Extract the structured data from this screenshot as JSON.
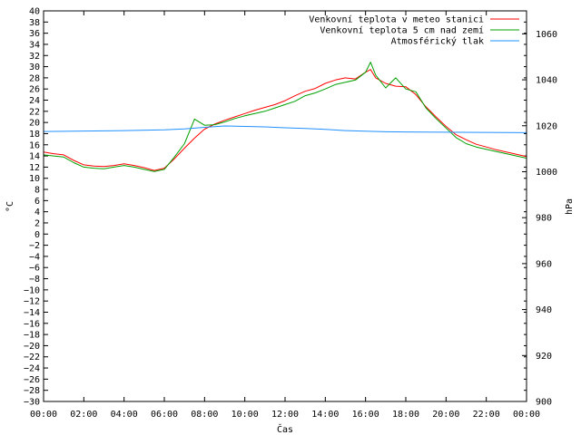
{
  "chart_data": {
    "type": "line",
    "xlabel": "Čas",
    "ylabel_left": "°C",
    "ylabel_right": "hPa",
    "x_ticks": [
      "00:00",
      "02:00",
      "04:00",
      "06:00",
      "08:00",
      "10:00",
      "12:00",
      "14:00",
      "16:00",
      "18:00",
      "20:00",
      "22:00",
      "00:00"
    ],
    "x_range_hours": [
      0,
      24
    ],
    "ylim_left": [
      -30,
      40
    ],
    "ytick_step_left": 2,
    "ylim_right": [
      900,
      1070
    ],
    "ytick_step_right": 20,
    "grid": false,
    "legend_position": "top-right",
    "series": [
      {
        "name": "Venkovní teplota v meteo stanici",
        "axis": "left",
        "color": "#ff0000",
        "x": [
          0,
          0.5,
          1,
          1.5,
          2,
          2.5,
          3,
          3.5,
          4,
          4.5,
          5,
          5.5,
          6,
          6.5,
          7,
          7.5,
          8,
          8.5,
          9,
          9.5,
          10,
          10.5,
          11,
          11.5,
          12,
          12.5,
          13,
          13.5,
          14,
          14.5,
          15,
          15.5,
          16,
          16.25,
          16.5,
          17,
          17.5,
          18,
          18.5,
          19,
          19.5,
          20,
          20.5,
          21,
          21.5,
          22,
          22.5,
          23,
          23.5,
          24
        ],
        "y": [
          14.7,
          14.4,
          14.2,
          13.2,
          12.4,
          12.2,
          12.1,
          12.3,
          12.6,
          12.3,
          11.9,
          11.4,
          11.8,
          13.5,
          15.4,
          17.2,
          18.8,
          19.7,
          20.4,
          21.0,
          21.6,
          22.2,
          22.7,
          23.2,
          23.9,
          24.8,
          25.6,
          26.1,
          27.0,
          27.6,
          28.0,
          27.8,
          29.0,
          29.5,
          28.0,
          27.0,
          26.5,
          26.4,
          25.0,
          22.8,
          21.0,
          19.3,
          17.8,
          16.9,
          16.1,
          15.6,
          15.1,
          14.7,
          14.3,
          13.9
        ]
      },
      {
        "name": "Venkovní teplota 5 cm nad zemí",
        "axis": "left",
        "color": "#00a000",
        "x": [
          0,
          0.5,
          1,
          1.5,
          2,
          2.5,
          3,
          3.5,
          4,
          4.5,
          5,
          5.5,
          6,
          6.5,
          7,
          7.5,
          8,
          8.5,
          9,
          9.5,
          10,
          10.5,
          11,
          11.5,
          12,
          12.5,
          13,
          13.5,
          14,
          14.5,
          15,
          15.5,
          16,
          16.25,
          16.5,
          17,
          17.5,
          18,
          18.5,
          19,
          19.5,
          20,
          20.5,
          21,
          21.5,
          22,
          22.5,
          23,
          23.5,
          24
        ],
        "y": [
          14.2,
          14.0,
          13.8,
          12.8,
          12.0,
          11.8,
          11.7,
          12.0,
          12.3,
          12.0,
          11.6,
          11.2,
          11.6,
          13.8,
          16.2,
          20.6,
          19.5,
          19.6,
          20.1,
          20.7,
          21.2,
          21.6,
          22.0,
          22.6,
          23.2,
          23.8,
          24.8,
          25.3,
          26.0,
          26.8,
          27.2,
          27.6,
          29.0,
          30.8,
          28.5,
          26.2,
          28.0,
          26.0,
          25.5,
          22.6,
          20.7,
          19.0,
          17.3,
          16.2,
          15.6,
          15.2,
          14.8,
          14.4,
          14.0,
          13.6
        ]
      },
      {
        "name": "Atmosférický tlak",
        "axis": "right",
        "color": "#1e90ff",
        "x": [
          0,
          2,
          4,
          6,
          7,
          8,
          9,
          10,
          11,
          12,
          13,
          14,
          15,
          16,
          17,
          18,
          20,
          22,
          24
        ],
        "y": [
          1017.5,
          1017.7,
          1017.9,
          1018.2,
          1018.6,
          1019.3,
          1019.9,
          1019.7,
          1019.5,
          1019.1,
          1018.8,
          1018.4,
          1017.9,
          1017.6,
          1017.4,
          1017.3,
          1017.2,
          1017.1,
          1017.0
        ]
      }
    ]
  }
}
